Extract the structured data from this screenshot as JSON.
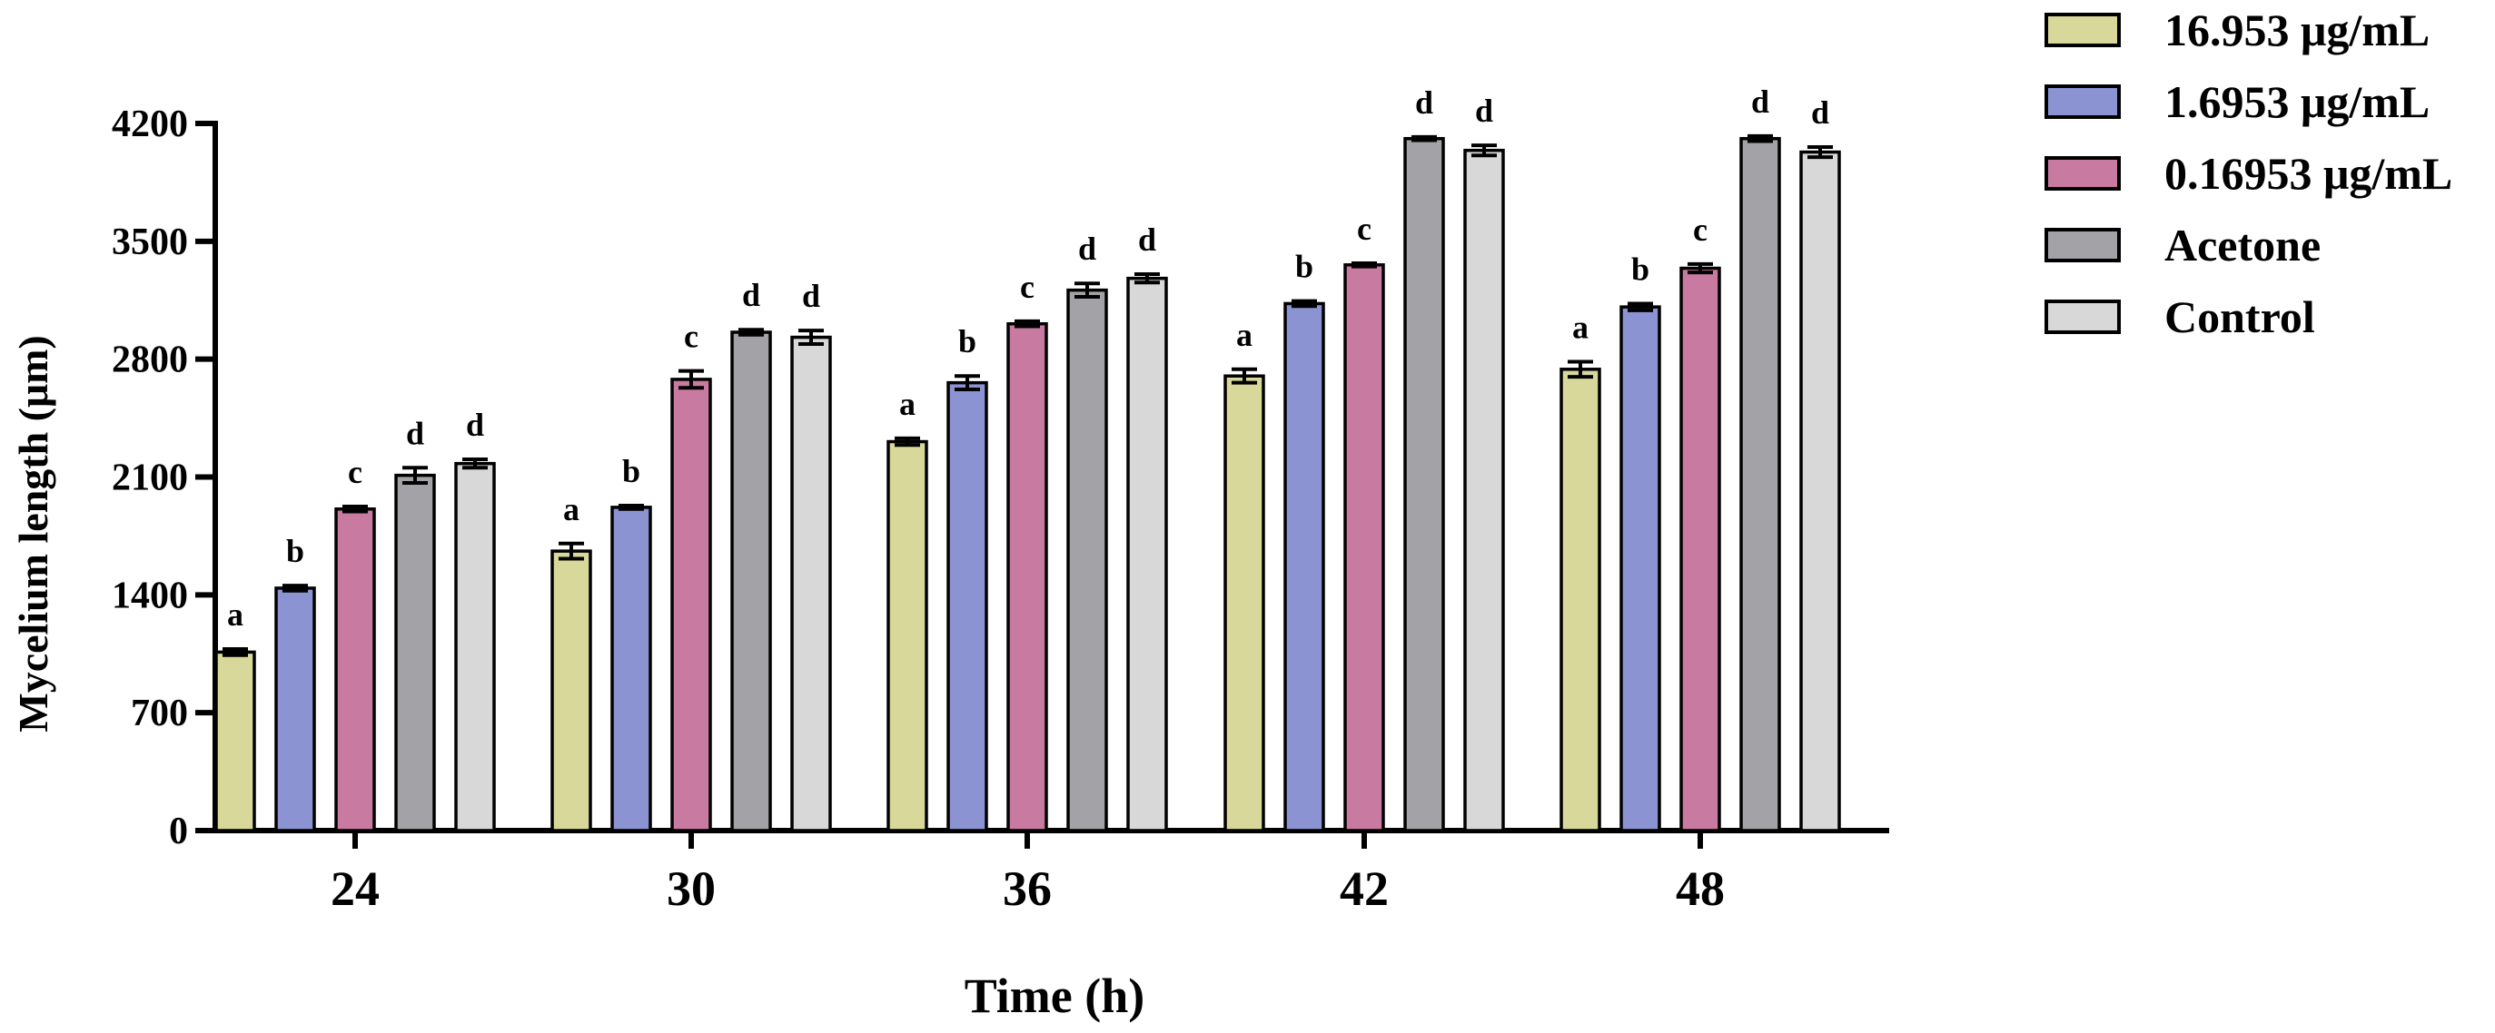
{
  "chart_data": {
    "type": "bar",
    "title": "",
    "xlabel": "Time (h)",
    "ylabel": "Mycelium length (μm)",
    "ylim": [
      0,
      4200
    ],
    "yticks": [
      "0",
      "700",
      "1400",
      "2100",
      "2800",
      "3500",
      "4200"
    ],
    "categories": [
      "24",
      "30",
      "36",
      "42",
      "48"
    ],
    "series": [
      {
        "name": "16.953 μg/mL",
        "color": "#d8d89a",
        "values": [
          1060,
          1660,
          2310,
          2700,
          2740
        ],
        "errors": [
          18,
          45,
          20,
          40,
          45
        ],
        "labels": [
          "a",
          "a",
          "a",
          "a",
          "a"
        ]
      },
      {
        "name": "1.6953 μg/mL",
        "color": "#8c93d2",
        "values": [
          1440,
          1920,
          2660,
          3130,
          3110
        ],
        "errors": [
          15,
          10,
          40,
          15,
          20
        ],
        "labels": [
          "b",
          "b",
          "b",
          "b",
          "b"
        ]
      },
      {
        "name": "0.16953 μg/mL",
        "color": "#c87aa0",
        "values": [
          1910,
          2680,
          3010,
          3360,
          3340
        ],
        "errors": [
          15,
          50,
          15,
          10,
          25
        ],
        "labels": [
          "c",
          "c",
          "c",
          "c",
          "c"
        ]
      },
      {
        "name": "Acetone",
        "color": "#a3a3a7",
        "values": [
          2110,
          2960,
          3210,
          4110,
          4110
        ],
        "errors": [
          45,
          15,
          40,
          10,
          15
        ],
        "labels": [
          "d",
          "d",
          "d",
          "d",
          "d"
        ]
      },
      {
        "name": "Control",
        "color": "#d8d8d8",
        "values": [
          2180,
          2930,
          3280,
          4040,
          4030
        ],
        "errors": [
          25,
          40,
          25,
          30,
          30
        ],
        "labels": [
          "d",
          "d",
          "d",
          "d",
          "d"
        ]
      }
    ],
    "legend": "top-right"
  }
}
